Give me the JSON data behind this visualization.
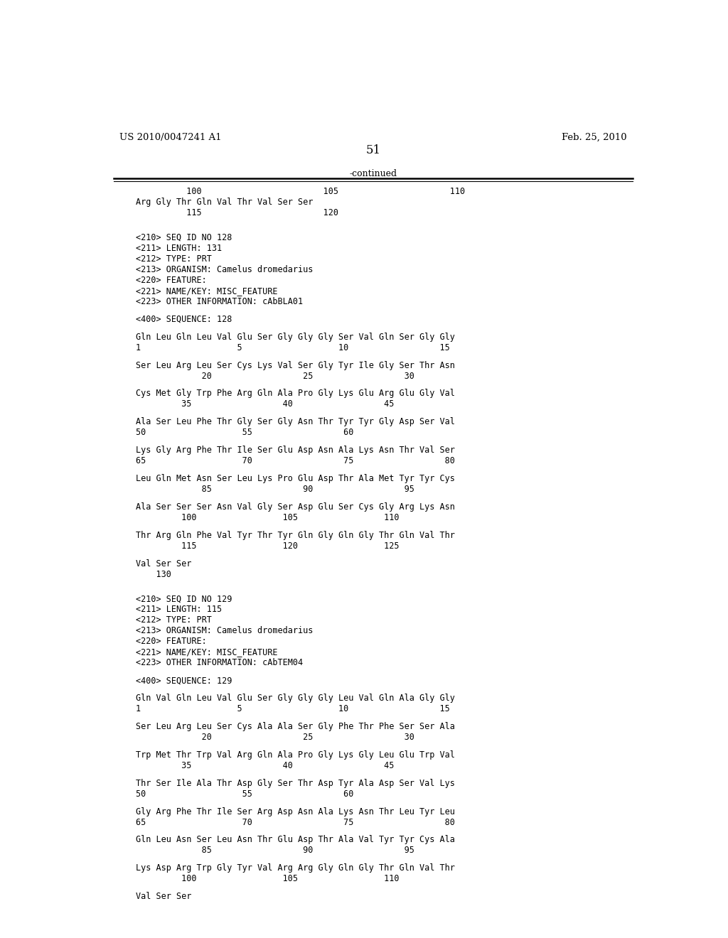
{
  "left_header": "US 2010/0047241 A1",
  "right_header": "Feb. 25, 2010",
  "page_number": "51",
  "continued_label": "-continued",
  "background_color": "#ffffff",
  "text_color": "#000000",
  "font_size": 8.5,
  "header_font_size": 9.5,
  "page_num_font_size": 12,
  "content": [
    {
      "type": "ruler_numbers",
      "text": "          100                        105                      110"
    },
    {
      "type": "sequence",
      "text": "Arg Gly Thr Gln Val Thr Val Ser Ser"
    },
    {
      "type": "position",
      "text": "          115                        120"
    },
    {
      "type": "blank"
    },
    {
      "type": "blank"
    },
    {
      "type": "meta",
      "text": "<210> SEQ ID NO 128"
    },
    {
      "type": "meta",
      "text": "<211> LENGTH: 131"
    },
    {
      "type": "meta",
      "text": "<212> TYPE: PRT"
    },
    {
      "type": "meta",
      "text": "<213> ORGANISM: Camelus dromedarius"
    },
    {
      "type": "meta",
      "text": "<220> FEATURE:"
    },
    {
      "type": "meta",
      "text": "<221> NAME/KEY: MISC_FEATURE"
    },
    {
      "type": "meta",
      "text": "<223> OTHER INFORMATION: cAbBLA01"
    },
    {
      "type": "blank"
    },
    {
      "type": "meta",
      "text": "<400> SEQUENCE: 128"
    },
    {
      "type": "blank"
    },
    {
      "type": "sequence",
      "text": "Gln Leu Gln Leu Val Glu Ser Gly Gly Gly Ser Val Gln Ser Gly Gly"
    },
    {
      "type": "position",
      "text": "1                   5                   10                  15"
    },
    {
      "type": "blank"
    },
    {
      "type": "sequence",
      "text": "Ser Leu Arg Leu Ser Cys Lys Val Ser Gly Tyr Ile Gly Ser Thr Asn"
    },
    {
      "type": "position",
      "text": "             20                  25                  30"
    },
    {
      "type": "blank"
    },
    {
      "type": "sequence",
      "text": "Cys Met Gly Trp Phe Arg Gln Ala Pro Gly Lys Glu Arg Glu Gly Val"
    },
    {
      "type": "position",
      "text": "         35                  40                  45"
    },
    {
      "type": "blank"
    },
    {
      "type": "sequence",
      "text": "Ala Ser Leu Phe Thr Gly Ser Gly Asn Thr Tyr Tyr Gly Asp Ser Val"
    },
    {
      "type": "position",
      "text": "50                   55                  60"
    },
    {
      "type": "blank"
    },
    {
      "type": "sequence",
      "text": "Lys Gly Arg Phe Thr Ile Ser Glu Asp Asn Ala Lys Asn Thr Val Ser"
    },
    {
      "type": "position",
      "text": "65                   70                  75                  80"
    },
    {
      "type": "blank"
    },
    {
      "type": "sequence",
      "text": "Leu Gln Met Asn Ser Leu Lys Pro Glu Asp Thr Ala Met Tyr Tyr Cys"
    },
    {
      "type": "position",
      "text": "             85                  90                  95"
    },
    {
      "type": "blank"
    },
    {
      "type": "sequence",
      "text": "Ala Ser Ser Ser Asn Val Gly Ser Asp Glu Ser Cys Gly Arg Lys Asn"
    },
    {
      "type": "position",
      "text": "         100                 105                 110"
    },
    {
      "type": "blank"
    },
    {
      "type": "sequence",
      "text": "Thr Arg Gln Phe Val Tyr Thr Tyr Gln Gly Gln Gly Thr Gln Val Thr"
    },
    {
      "type": "position",
      "text": "         115                 120                 125"
    },
    {
      "type": "blank"
    },
    {
      "type": "sequence",
      "text": "Val Ser Ser"
    },
    {
      "type": "position",
      "text": "    130"
    },
    {
      "type": "blank"
    },
    {
      "type": "blank"
    },
    {
      "type": "meta",
      "text": "<210> SEQ ID NO 129"
    },
    {
      "type": "meta",
      "text": "<211> LENGTH: 115"
    },
    {
      "type": "meta",
      "text": "<212> TYPE: PRT"
    },
    {
      "type": "meta",
      "text": "<213> ORGANISM: Camelus dromedarius"
    },
    {
      "type": "meta",
      "text": "<220> FEATURE:"
    },
    {
      "type": "meta",
      "text": "<221> NAME/KEY: MISC_FEATURE"
    },
    {
      "type": "meta",
      "text": "<223> OTHER INFORMATION: cAbTEM04"
    },
    {
      "type": "blank"
    },
    {
      "type": "meta",
      "text": "<400> SEQUENCE: 129"
    },
    {
      "type": "blank"
    },
    {
      "type": "sequence",
      "text": "Gln Val Gln Leu Val Glu Ser Gly Gly Gly Leu Val Gln Ala Gly Gly"
    },
    {
      "type": "position",
      "text": "1                   5                   10                  15"
    },
    {
      "type": "blank"
    },
    {
      "type": "sequence",
      "text": "Ser Leu Arg Leu Ser Cys Ala Ala Ser Gly Phe Thr Phe Ser Ser Ala"
    },
    {
      "type": "position",
      "text": "             20                  25                  30"
    },
    {
      "type": "blank"
    },
    {
      "type": "sequence",
      "text": "Trp Met Thr Trp Val Arg Gln Ala Pro Gly Lys Gly Leu Glu Trp Val"
    },
    {
      "type": "position",
      "text": "         35                  40                  45"
    },
    {
      "type": "blank"
    },
    {
      "type": "sequence",
      "text": "Thr Ser Ile Ala Thr Asp Gly Ser Thr Asp Tyr Ala Asp Ser Val Lys"
    },
    {
      "type": "position",
      "text": "50                   55                  60"
    },
    {
      "type": "blank"
    },
    {
      "type": "sequence",
      "text": "Gly Arg Phe Thr Ile Ser Arg Asp Asn Ala Lys Asn Thr Leu Tyr Leu"
    },
    {
      "type": "position",
      "text": "65                   70                  75                  80"
    },
    {
      "type": "blank"
    },
    {
      "type": "sequence",
      "text": "Gln Leu Asn Ser Leu Asn Thr Glu Asp Thr Ala Val Tyr Tyr Cys Ala"
    },
    {
      "type": "position",
      "text": "             85                  90                  95"
    },
    {
      "type": "blank"
    },
    {
      "type": "sequence",
      "text": "Lys Asp Arg Trp Gly Tyr Val Arg Arg Gly Gln Gly Thr Gln Val Thr"
    },
    {
      "type": "position",
      "text": "         100                 105                 110"
    },
    {
      "type": "blank"
    },
    {
      "type": "sequence",
      "text": "Val Ser Ser"
    },
    {
      "type": "position",
      "text": ""
    }
  ]
}
